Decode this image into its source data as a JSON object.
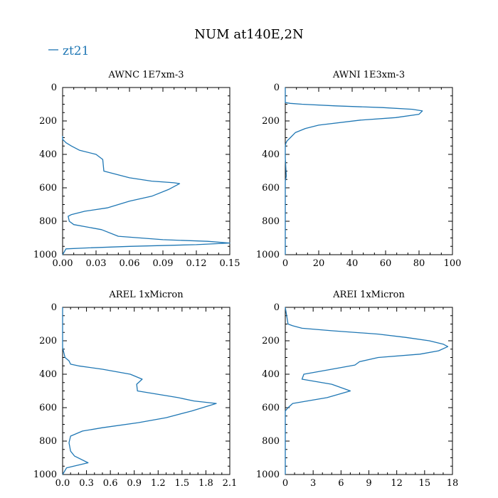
{
  "figure": {
    "title": "NUM at140E,2N"
  },
  "legend": {
    "label": "zt21",
    "color": "#1f77b4"
  },
  "chart_data": [
    {
      "type": "line",
      "title": "AWNC  1E7xm-3",
      "xlim": [
        0,
        0.15
      ],
      "ylim": [
        1000,
        0
      ],
      "xticks": [
        "0.00",
        "0.03",
        "0.06",
        "0.09",
        "0.12",
        "0.15"
      ],
      "yticks": [
        "0",
        "200",
        "400",
        "600",
        "800",
        "1000"
      ],
      "series": [
        {
          "name": "zt21",
          "x": [
            0,
            0,
            0.003,
            0.008,
            0.015,
            0.03,
            0.036,
            0.037,
            0.06,
            0.08,
            0.1,
            0.105,
            0.095,
            0.08,
            0.06,
            0.04,
            0.02,
            0.008,
            0.005,
            0.006,
            0.01,
            0.035,
            0.05,
            0.09,
            0.13,
            0.15,
            0.12,
            0.06,
            0.02,
            0.003,
            0
          ],
          "y": [
            290,
            310,
            330,
            350,
            375,
            400,
            430,
            500,
            540,
            560,
            570,
            575,
            610,
            650,
            680,
            720,
            740,
            760,
            770,
            800,
            820,
            850,
            890,
            910,
            920,
            930,
            940,
            950,
            960,
            965,
            1000
          ]
        }
      ]
    },
    {
      "type": "line",
      "title": "AWNI  1E3xm-3",
      "xlim": [
        0,
        100
      ],
      "ylim": [
        1000,
        0
      ],
      "xticks": [
        "0",
        "20",
        "40",
        "60",
        "80",
        "100"
      ],
      "yticks": [
        "0",
        "200",
        "400",
        "600",
        "800",
        "1000"
      ],
      "series": [
        {
          "name": "zt21",
          "x": [
            0,
            0,
            3,
            10,
            30,
            58,
            76,
            82,
            80,
            66,
            45,
            20,
            12,
            6,
            3,
            1,
            0.3,
            0,
            0,
            0.6,
            0,
            0
          ],
          "y": [
            0,
            90,
            95,
            100,
            110,
            120,
            130,
            140,
            160,
            180,
            195,
            225,
            245,
            270,
            300,
            320,
            335,
            350,
            420,
            530,
            560,
            1000
          ]
        }
      ]
    },
    {
      "type": "line",
      "title": "AREL  1xMicron",
      "xlim": [
        0,
        2.1
      ],
      "ylim": [
        1000,
        0
      ],
      "xticks": [
        "0.0",
        "0.3",
        "0.6",
        "0.9",
        "1.2",
        "1.5",
        "1.8",
        "2.1"
      ],
      "yticks": [
        "0",
        "200",
        "400",
        "600",
        "800",
        "1000"
      ],
      "series": [
        {
          "name": "zt21",
          "x": [
            0,
            0,
            0.03,
            0.08,
            0.1,
            0.2,
            0.5,
            0.85,
            1.0,
            0.93,
            0.94,
            1.45,
            1.65,
            1.93,
            1.62,
            1.3,
            0.95,
            0.5,
            0.25,
            0.1,
            0.08,
            0.1,
            0.15,
            0.32,
            0.05,
            0
          ],
          "y": [
            0,
            240,
            300,
            320,
            340,
            350,
            370,
            400,
            430,
            460,
            500,
            540,
            560,
            575,
            620,
            660,
            690,
            720,
            740,
            770,
            810,
            860,
            890,
            930,
            960,
            1000
          ]
        }
      ]
    },
    {
      "type": "line",
      "title": "AREI  1xMicron",
      "xlim": [
        0,
        18
      ],
      "ylim": [
        1000,
        0
      ],
      "xticks": [
        "0",
        "3",
        "6",
        "9",
        "12",
        "15",
        "18"
      ],
      "yticks": [
        "0",
        "200",
        "400",
        "600",
        "800",
        "1000"
      ],
      "series": [
        {
          "name": "zt21",
          "x": [
            0,
            0.3,
            0.8,
            1.8,
            5,
            10,
            13,
            15.5,
            17,
            17.5,
            16.5,
            14.5,
            10,
            8,
            7.5,
            5,
            2,
            1.8,
            5,
            7,
            4.5,
            0.8,
            0.3,
            0,
            0
          ],
          "y": [
            0,
            100,
            110,
            125,
            140,
            160,
            180,
            200,
            220,
            235,
            260,
            280,
            300,
            325,
            345,
            370,
            400,
            430,
            460,
            500,
            540,
            575,
            600,
            620,
            1000
          ]
        }
      ]
    }
  ]
}
